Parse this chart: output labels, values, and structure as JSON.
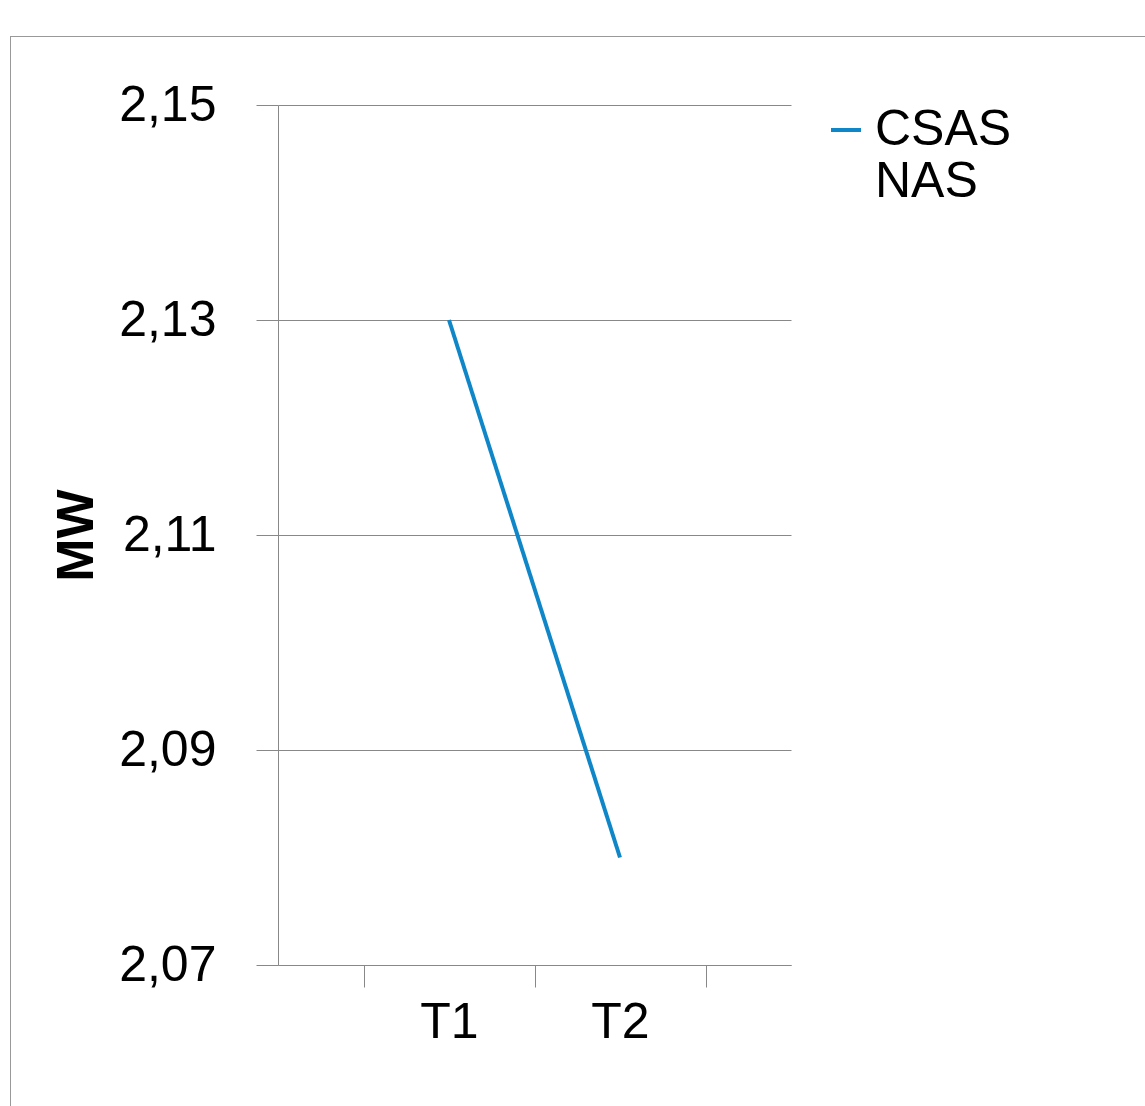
{
  "chart_data": {
    "type": "line",
    "ylabel": "MW",
    "categories": [
      "T1",
      "T2"
    ],
    "series": [
      {
        "name": "CSAS NAS",
        "color": "#0e86c8",
        "values": [
          2.13,
          2.08
        ]
      }
    ],
    "ylim": [
      2.07,
      2.15
    ],
    "yticks": [
      {
        "value": 2.07,
        "label": "2,07"
      },
      {
        "value": 2.09,
        "label": "2,09"
      },
      {
        "value": 2.11,
        "label": "2,11"
      },
      {
        "value": 2.13,
        "label": "2,13"
      },
      {
        "value": 2.15,
        "label": "2,15"
      }
    ],
    "grid": "y",
    "legend": "right",
    "marker": "none",
    "line_style": "solid"
  }
}
